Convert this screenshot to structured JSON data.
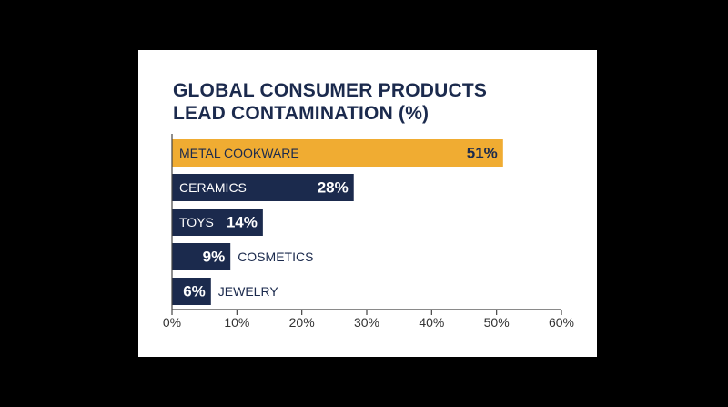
{
  "colors": {
    "background": "#000000",
    "card": "#ffffff",
    "title": "#1b2a4d",
    "highlight_bar": "#f0ac32",
    "bar": "#1b2a4d",
    "axis": "#444444",
    "text_dark": "#1b2a4d"
  },
  "chart_data": {
    "type": "bar",
    "orientation": "horizontal",
    "title": [
      "GLOBAL CONSUMER PRODUCTS",
      "LEAD CONTAMINATION (%)"
    ],
    "categories": [
      "METAL COOKWARE",
      "CERAMICS",
      "TOYS",
      "COSMETICS",
      "JEWELRY"
    ],
    "values": [
      51,
      28,
      14,
      9,
      6
    ],
    "data_labels": [
      "51%",
      "28%",
      "14%",
      "9%",
      "6%"
    ],
    "highlighted_category": "METAL COOKWARE",
    "xlim": [
      0,
      60
    ],
    "xticks": [
      0,
      10,
      20,
      30,
      40,
      50,
      60
    ],
    "xtick_labels": [
      "0%",
      "10%",
      "20%",
      "30%",
      "40%",
      "50%",
      "60%"
    ],
    "grid": false,
    "legend": "none"
  }
}
